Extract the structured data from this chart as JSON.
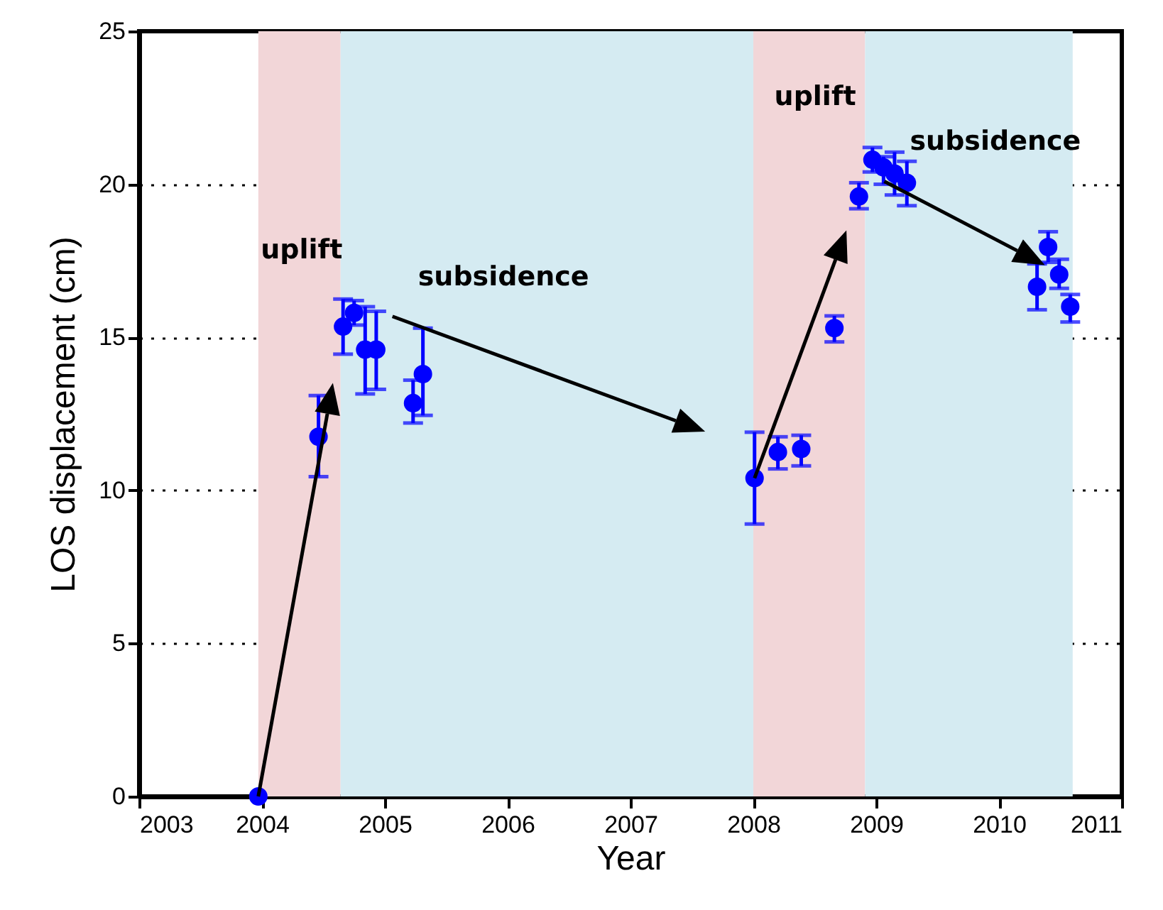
{
  "chart_data": {
    "type": "scatter",
    "xlabel": "Year",
    "ylabel": "LOS displacement (cm)",
    "x": [
      2003.97,
      2004.46,
      2004.66,
      2004.75,
      2004.84,
      2004.93,
      2005.23,
      2005.31,
      2008.01,
      2008.2,
      2008.39,
      2008.66,
      2008.86,
      2008.97,
      2009.06,
      2009.15,
      2009.25,
      2010.31,
      2010.4,
      2010.49,
      2010.58
    ],
    "series": [
      {
        "color": "#0000ff",
        "values": [
          0,
          11.75,
          15.35,
          15.8,
          14.6,
          14.6,
          12.85,
          13.8,
          10.4,
          11.25,
          11.35,
          15.3,
          19.6,
          20.8,
          20.55,
          20.35,
          20.05,
          16.65,
          17.95,
          17.05,
          16.0
        ],
        "errors": [
          null,
          [
            10.45,
            13.1
          ],
          [
            14.45,
            16.25
          ],
          [
            15.4,
            16.2
          ],
          [
            13.15,
            16.0
          ],
          [
            13.3,
            15.85
          ],
          [
            12.2,
            13.6
          ],
          [
            12.45,
            15.3
          ],
          [
            8.9,
            11.9
          ],
          [
            10.7,
            11.75
          ],
          [
            10.8,
            11.8
          ],
          [
            14.85,
            15.7
          ],
          [
            19.2,
            20.05
          ],
          [
            20.4,
            21.2
          ],
          [
            20.0,
            20.9
          ],
          [
            19.65,
            21.05
          ],
          [
            19.3,
            20.75
          ],
          [
            15.9,
            17.4
          ],
          [
            17.45,
            18.45
          ],
          [
            16.6,
            17.55
          ],
          [
            15.5,
            16.4
          ]
        ]
      }
    ],
    "xlim": [
      2003,
      2011
    ],
    "xticks": [
      2003,
      2004,
      2005,
      2006,
      2007,
      2008,
      2009,
      2010,
      2011
    ],
    "ylim": [
      0,
      25
    ],
    "yticks": [
      0,
      5,
      10,
      15,
      20,
      25
    ],
    "bands": [
      {
        "axis": "x",
        "from": 2003.97,
        "to": 2004.64,
        "color": "#f2d6d8"
      },
      {
        "axis": "x",
        "from": 2004.64,
        "to": 2008.0,
        "color": "#d5ebf2"
      },
      {
        "axis": "x",
        "from": 2008.0,
        "to": 2008.91,
        "color": "#f2d6d8"
      },
      {
        "axis": "x",
        "from": 2008.91,
        "to": 2010.6,
        "color": "#d5ebf2"
      }
    ],
    "annotations": [
      "uplift",
      "subsidence",
      "uplift",
      "subsidence"
    ],
    "grid": true,
    "marker": "circle"
  }
}
